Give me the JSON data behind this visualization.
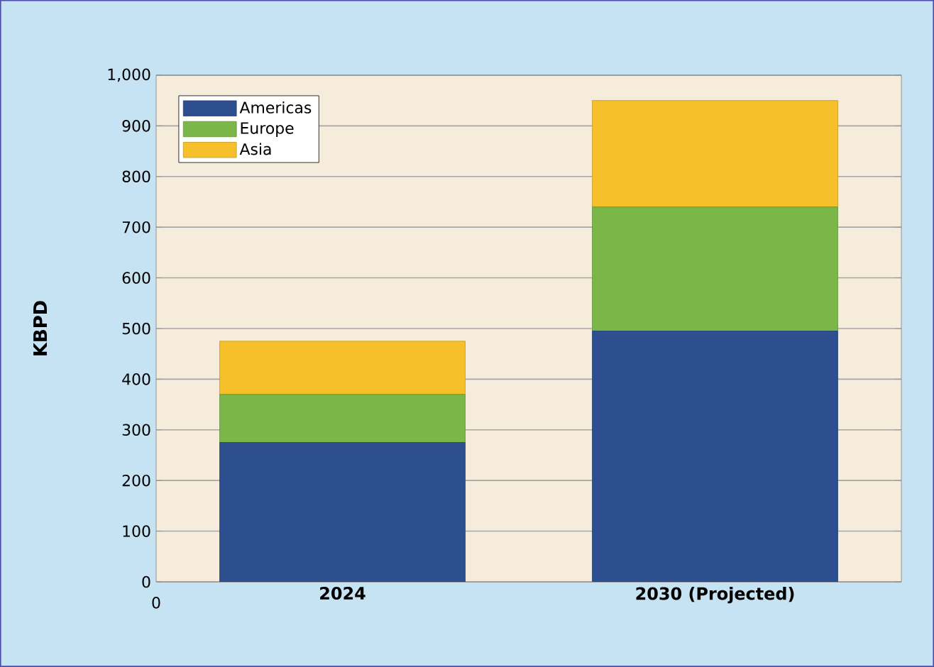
{
  "chart_data": {
    "type": "bar",
    "stacked": true,
    "ylabel": "KBPD",
    "categories": [
      "2024",
      "2030 (Projected)"
    ],
    "series": [
      {
        "name": "Americas",
        "color": "#2e4f8f",
        "values": [
          275,
          495
        ]
      },
      {
        "name": "Europe",
        "color": "#7ab648",
        "values": [
          95,
          245
        ]
      },
      {
        "name": "Asia",
        "color": "#f5c02a",
        "values": [
          105,
          210
        ]
      }
    ],
    "ylim": [
      0,
      1000
    ],
    "yticks": [
      0,
      {
        "value": 100,
        "label": "100"
      },
      {
        "value": 200,
        "label": "200"
      },
      {
        "value": 300,
        "label": "300"
      },
      {
        "value": 400,
        "label": "400"
      },
      {
        "value": 500,
        "label": "500"
      },
      {
        "value": 600,
        "label": "600"
      },
      {
        "value": 700,
        "label": "700"
      },
      {
        "value": 800,
        "label": "800"
      },
      {
        "value": 900,
        "label": "900"
      },
      {
        "value": 1000,
        "label": "1,000"
      }
    ],
    "grid": "y",
    "legend": "top left",
    "annotations": [
      "0"
    ]
  }
}
